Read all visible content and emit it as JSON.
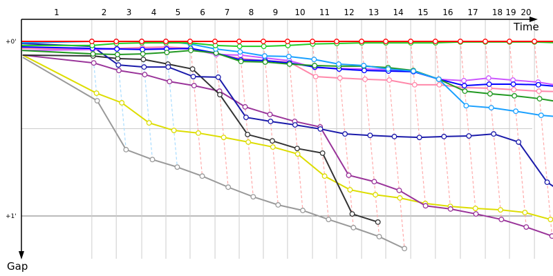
{
  "chart_data": {
    "type": "line",
    "x_label": "Time",
    "y_label": "Gap",
    "y_ticks": [
      "+0'",
      "+1'"
    ],
    "lap_labels": [
      "1",
      "2",
      "3",
      "4",
      "5",
      "6",
      "7",
      "8",
      "9",
      "10",
      "11",
      "12",
      "13",
      "14",
      "15",
      "16",
      "17",
      "18",
      "19",
      "20"
    ],
    "leader_time_s": [
      0,
      268,
      361,
      458,
      550,
      642,
      737,
      829,
      921,
      1013,
      1108,
      1200,
      1295,
      1387,
      1482,
      1576,
      1671,
      1766,
      1858,
      1953,
      2048
    ],
    "leader_by_lap": [
      "lightblue",
      "lightblue",
      "lightblue",
      "lightblue",
      "lightblue",
      "red",
      "red",
      "red",
      "red",
      "red",
      "red",
      "red",
      "red",
      "red",
      "red",
      "red",
      "red",
      "red",
      "red",
      "red",
      "red"
    ],
    "lap_line_colors": {
      "lightblue": "#a8dcff",
      "red": "#ffaaaa"
    },
    "grid": true,
    "series": [
      {
        "id": "gray",
        "color": "#999999",
        "gaps_s": [
          5.5,
          20.4,
          37.2,
          40.6,
          43.2,
          46.3,
          50.1,
          53.4,
          56.2,
          58.1,
          61.2,
          64.0,
          67.1,
          71.2
        ]
      },
      {
        "id": "yellow",
        "color": "#dddd00",
        "gaps_s": [
          4.7,
          17.8,
          21.1,
          28.0,
          30.6,
          31.5,
          33.0,
          34.6,
          36.3,
          38.7,
          46.3,
          51.0,
          52.7,
          53.8,
          55.7,
          56.7,
          57.4,
          57.9,
          58.8,
          61.2
        ]
      },
      {
        "id": "purple",
        "color": "#993399",
        "gaps_s": [
          4.7,
          7.4,
          10.0,
          11.4,
          13.8,
          15.2,
          17.1,
          22.5,
          25.1,
          27.5,
          29.4,
          46.0,
          48.2,
          51.2,
          56.5,
          57.6,
          59.3,
          61.2,
          63.8,
          66.9
        ]
      },
      {
        "id": "black",
        "color": "#333333",
        "gaps_s": [
          4.7,
          5.0,
          5.9,
          6.2,
          7.8,
          9.5,
          18.3,
          32.0,
          34.2,
          36.8,
          38.4,
          59.3,
          62.1
        ]
      },
      {
        "id": "navy",
        "color": "#1a1aaa",
        "gaps_s": [
          0.7,
          1.7,
          8.1,
          8.8,
          8.8,
          12.1,
          12.3,
          26.1,
          27.5,
          28.7,
          30.1,
          31.8,
          32.3,
          32.7,
          33.0,
          32.7,
          32.5,
          31.8,
          34.6,
          48.4,
          54.5
        ]
      },
      {
        "id": "pink",
        "color": "#ff88aa",
        "gaps_s": [
          2.4,
          2.6,
          2.4,
          2.1,
          1.9,
          2.4,
          4.3,
          5.9,
          6.6,
          7.1,
          12.1,
          12.6,
          13.0,
          13.3,
          14.9,
          14.9,
          15.9,
          16.1,
          16.6,
          17.1,
          17.3
        ]
      },
      {
        "id": "violet",
        "color": "#cc55ff",
        "gaps_s": [
          3.1,
          2.8,
          2.6,
          2.6,
          2.4,
          2.6,
          4.5,
          4.7,
          5.7,
          6.6,
          9.0,
          9.3,
          9.5,
          9.7,
          10.2,
          13.0,
          13.5,
          12.6,
          13.3,
          14.0,
          15.4
        ]
      },
      {
        "id": "blue",
        "color": "#0000ff",
        "gaps_s": [
          1.9,
          2.4,
          2.6,
          2.8,
          2.6,
          2.4,
          4.0,
          6.4,
          6.6,
          7.4,
          8.8,
          9.5,
          10.0,
          10.2,
          10.4,
          13.0,
          15.2,
          14.7,
          14.7,
          14.9,
          15.7
        ]
      },
      {
        "id": "darkgreen",
        "color": "#229922",
        "gaps_s": [
          3.1,
          4.3,
          4.5,
          4.3,
          3.8,
          3.1,
          4.0,
          6.9,
          7.1,
          7.8,
          8.3,
          8.5,
          8.5,
          9.0,
          10.0,
          13.0,
          17.1,
          18.0,
          18.7,
          19.7,
          21.1
        ]
      },
      {
        "id": "lightblue",
        "color": "#1aa0ff",
        "gaps_s": [
          0.5,
          0,
          0,
          0,
          0,
          0.9,
          2.6,
          3.6,
          5.0,
          5.2,
          6.2,
          7.8,
          8.3,
          9.5,
          10.2,
          13.0,
          22.1,
          22.8,
          24.0,
          25.4,
          26.1
        ]
      },
      {
        "id": "green",
        "color": "#22cc22",
        "gaps_s": [
          1.4,
          1.4,
          0.7,
          0.5,
          0.5,
          0.5,
          1.4,
          1.7,
          1.7,
          1.4,
          0.9,
          0.7,
          0.5,
          0.5,
          0.5,
          0.5,
          0.2,
          0.2,
          0.2,
          0.2,
          0.5
        ]
      },
      {
        "id": "red",
        "color": "#ff0000",
        "gaps_s": [
          0,
          0,
          0,
          0,
          0,
          0,
          0,
          0,
          0,
          0,
          0,
          0,
          0,
          0,
          0,
          0,
          0,
          0,
          0,
          0,
          0
        ]
      }
    ]
  }
}
